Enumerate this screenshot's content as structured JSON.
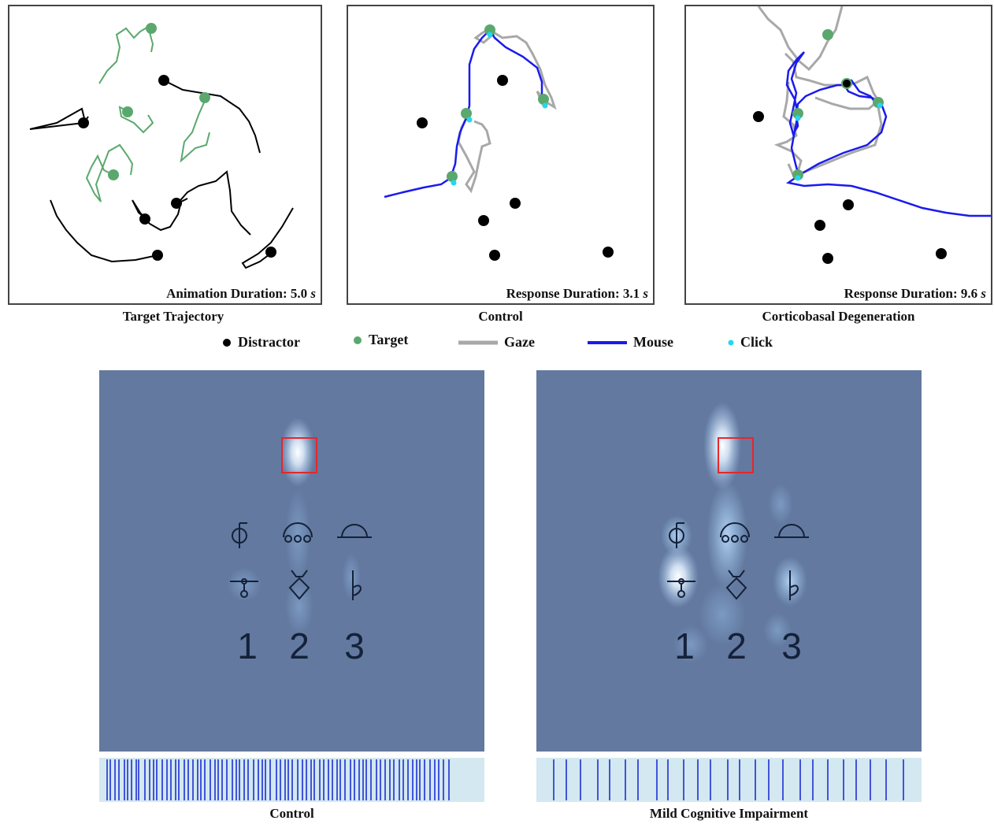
{
  "top_panels": [
    {
      "id": "target-trajectory",
      "duration_prefix": "Animation Duration: ",
      "duration_value": "5.0",
      "duration_unit": "s",
      "caption": "Target Trajectory"
    },
    {
      "id": "control",
      "duration_prefix": "Response Duration: ",
      "duration_value": "3.1",
      "duration_unit": "s",
      "caption": "Control"
    },
    {
      "id": "cbd",
      "duration_prefix": "Response Duration: ",
      "duration_value": "9.6",
      "duration_unit": "s",
      "caption": "Corticobasal Degeneration"
    }
  ],
  "legend": {
    "distractor": "Distractor",
    "target": "Target",
    "gaze": "Gaze",
    "mouse": "Mouse",
    "click": "Click"
  },
  "colors": {
    "distractor": "#000000",
    "target": "#5aa86e",
    "gaze": "#a8a8a8",
    "mouse": "#1a1aee",
    "click": "#22d8ee",
    "heatmap_bg": "#63799f",
    "aoi_box": "#e8262a",
    "barcode_bg": "#d3e8f0",
    "barcode_line": "#1d2fd6"
  },
  "heatmaps": [
    {
      "id": "control",
      "digits": [
        "1",
        "2",
        "3"
      ],
      "caption": "Control"
    },
    {
      "id": "mci",
      "digits": [
        "1",
        "2",
        "3"
      ],
      "caption": "Mild Cognitive Impairment"
    }
  ]
}
